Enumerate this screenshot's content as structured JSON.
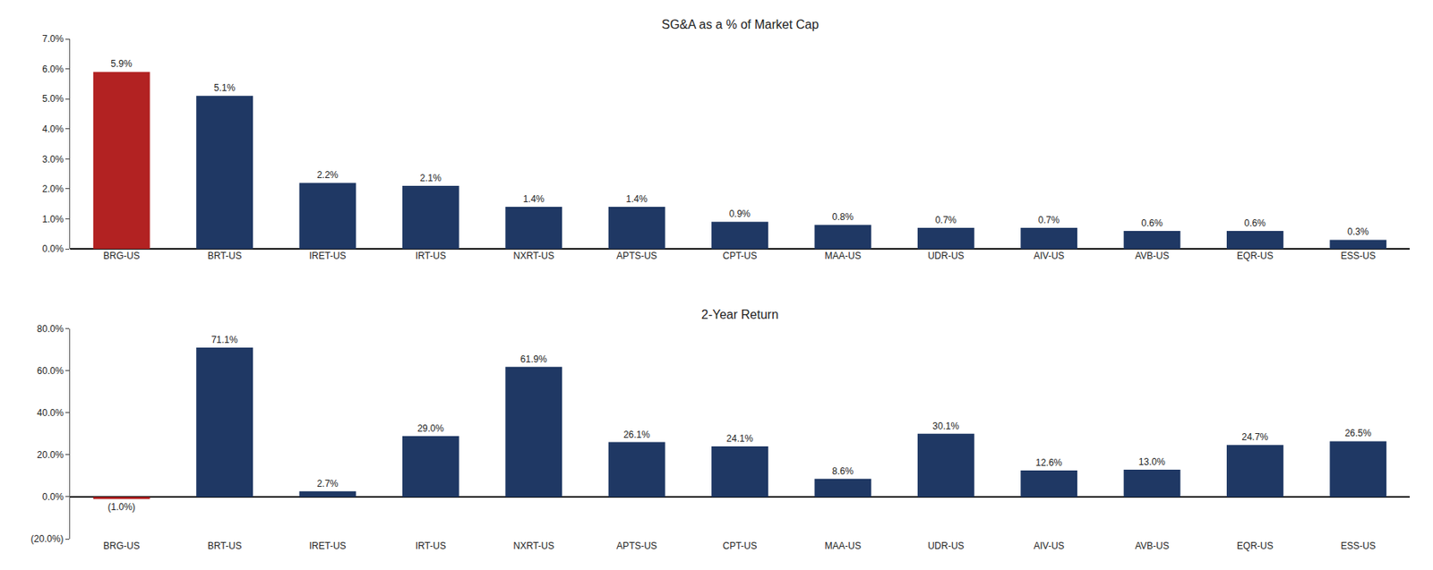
{
  "chart_data": [
    {
      "type": "bar",
      "title": "SG&A as a % of Market Cap",
      "categories": [
        "BRG-US",
        "BRT-US",
        "IRET-US",
        "IRT-US",
        "NXRT-US",
        "APTS-US",
        "CPT-US",
        "MAA-US",
        "UDR-US",
        "AIV-US",
        "AVB-US",
        "EQR-US",
        "ESS-US"
      ],
      "values": [
        5.9,
        5.1,
        2.2,
        2.1,
        1.4,
        1.4,
        0.9,
        0.8,
        0.7,
        0.7,
        0.6,
        0.6,
        0.3
      ],
      "value_labels": [
        "5.9%",
        "5.1%",
        "2.2%",
        "2.1%",
        "1.4%",
        "1.4%",
        "0.9%",
        "0.8%",
        "0.7%",
        "0.7%",
        "0.6%",
        "0.6%",
        "0.3%"
      ],
      "data_labels": true,
      "colors": [
        "#b22222",
        "#1f3864",
        "#1f3864",
        "#1f3864",
        "#1f3864",
        "#1f3864",
        "#1f3864",
        "#1f3864",
        "#1f3864",
        "#1f3864",
        "#1f3864",
        "#1f3864",
        "#1f3864"
      ],
      "ylim": [
        0,
        7
      ],
      "yticks": [
        {
          "value": 0,
          "label": "0.0%"
        },
        {
          "value": 1,
          "label": "1.0%"
        },
        {
          "value": 2,
          "label": "2.0%"
        },
        {
          "value": 3,
          "label": "3.0%"
        },
        {
          "value": 4,
          "label": "4.0%"
        },
        {
          "value": 5,
          "label": "5.0%"
        },
        {
          "value": 6,
          "label": "6.0%"
        },
        {
          "value": 7,
          "label": "7.0%"
        }
      ],
      "grid": false
    },
    {
      "type": "bar",
      "title": "2-Year Return",
      "categories": [
        "BRG-US",
        "BRT-US",
        "IRET-US",
        "IRT-US",
        "NXRT-US",
        "APTS-US",
        "CPT-US",
        "MAA-US",
        "UDR-US",
        "AIV-US",
        "AVB-US",
        "EQR-US",
        "ESS-US"
      ],
      "values": [
        -1.0,
        71.1,
        2.7,
        29.0,
        61.9,
        26.1,
        24.1,
        8.6,
        30.1,
        12.6,
        13.0,
        24.7,
        26.5
      ],
      "value_labels": [
        "(1.0%)",
        "71.1%",
        "2.7%",
        "29.0%",
        "61.9%",
        "26.1%",
        "24.1%",
        "8.6%",
        "30.1%",
        "12.6%",
        "13.0%",
        "24.7%",
        "26.5%"
      ],
      "data_labels": true,
      "colors": [
        "#b22222",
        "#1f3864",
        "#1f3864",
        "#1f3864",
        "#1f3864",
        "#1f3864",
        "#1f3864",
        "#1f3864",
        "#1f3864",
        "#1f3864",
        "#1f3864",
        "#1f3864",
        "#1f3864"
      ],
      "ylim": [
        -20,
        80
      ],
      "yticks": [
        {
          "value": -20,
          "label": "(20.0%)"
        },
        {
          "value": 0,
          "label": "0.0%"
        },
        {
          "value": 20,
          "label": "20.0%"
        },
        {
          "value": 40,
          "label": "40.0%"
        },
        {
          "value": 60,
          "label": "60.0%"
        },
        {
          "value": 80,
          "label": "80.0%"
        }
      ],
      "grid": false
    }
  ]
}
